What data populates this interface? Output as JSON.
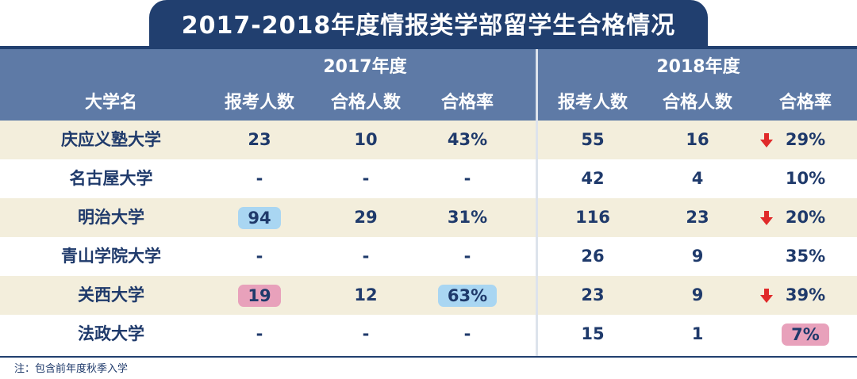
{
  "title": "2017-2018年度情报类学部留学生合格情况",
  "years": {
    "y2017": "2017年度",
    "y2018": "2018年度"
  },
  "columns": [
    "大学名",
    "报考人数",
    "合格人数",
    "合格率",
    "报考人数",
    "合格人数",
    "合格率"
  ],
  "rows": [
    {
      "name": "庆应义塾大学",
      "a2017": "23",
      "p2017": "10",
      "r2017": "43%",
      "a2018": "55",
      "p2018": "16",
      "r2018": "29%",
      "down_arrow": true
    },
    {
      "name": "名古屋大学",
      "a2017": "-",
      "p2017": "-",
      "r2017": "-",
      "a2018": "42",
      "p2018": "4",
      "r2018": "10%",
      "down_arrow": false
    },
    {
      "name": "明治大学",
      "a2017": "94",
      "p2017": "29",
      "r2017": "31%",
      "a2018": "116",
      "p2018": "23",
      "r2018": "20%",
      "down_arrow": true,
      "highlight_a2017": "blue"
    },
    {
      "name": "青山学院大学",
      "a2017": "-",
      "p2017": "-",
      "r2017": "-",
      "a2018": "26",
      "p2018": "9",
      "r2018": "35%",
      "down_arrow": false
    },
    {
      "name": "关西大学",
      "a2017": "19",
      "p2017": "12",
      "r2017": "63%",
      "a2018": "23",
      "p2018": "9",
      "r2018": "39%",
      "down_arrow": true,
      "highlight_a2017": "pink",
      "highlight_r2017": "blue"
    },
    {
      "name": "法政大学",
      "a2017": "-",
      "p2017": "-",
      "r2017": "-",
      "a2018": "15",
      "p2018": "1",
      "r2018": "7%",
      "down_arrow": false,
      "highlight_r2018": "pink"
    }
  ],
  "note": "注：包含前年度秋季入学",
  "colors": {
    "title_bg": "#213f6f",
    "header_bg": "#5e7aa6",
    "row_tan": "#f3eedc",
    "text": "#1f3a6b",
    "highlight_blue": "#a9d6f2",
    "highlight_pink": "#e8a1bb",
    "arrow_red": "#e02a2a"
  },
  "icons": {
    "down_arrow": "arrow-down-icon"
  }
}
